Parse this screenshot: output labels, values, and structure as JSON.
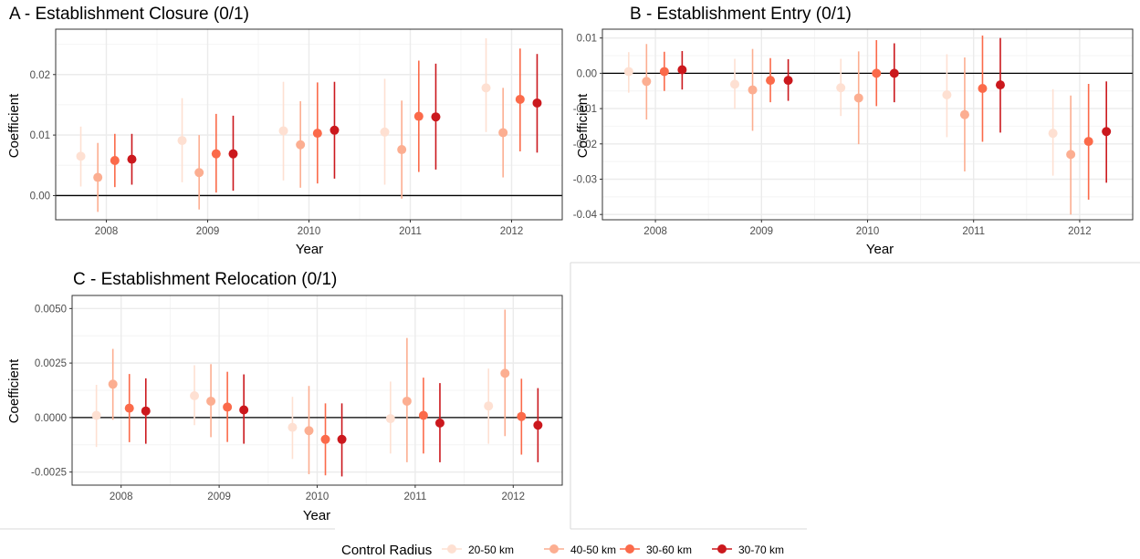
{
  "colors": {
    "series": [
      "#fee0d2",
      "#fcae91",
      "#fb6a4a",
      "#cb181d"
    ],
    "grid_major": "#ebebeb",
    "grid_minor": "#f4f4f4",
    "panel_border": "#333333",
    "zero_line": "#000000"
  },
  "legend": {
    "title": "Control Radius",
    "items": [
      "20-50 km",
      "40-50 km",
      "30-60 km",
      "30-70 km"
    ]
  },
  "chart_data": [
    {
      "type": "scatter",
      "title": "A - Establishment Closure (0/1)",
      "xlabel": "Year",
      "ylabel": "Coefficient",
      "categories": [
        "2008",
        "2009",
        "2010",
        "2011",
        "2012"
      ],
      "ylim": [
        -0.004,
        0.0275
      ],
      "yticks": [
        0.0,
        0.01,
        0.02
      ],
      "ytick_labels": [
        "0.00",
        "0.01",
        "0.02"
      ],
      "series": [
        {
          "name": "20-50 km",
          "values": [
            0.0065,
            0.0091,
            0.0107,
            0.0105,
            0.0178
          ],
          "lower": [
            0.0015,
            0.0022,
            0.0025,
            0.0018,
            0.0105
          ],
          "upper": [
            0.0114,
            0.0161,
            0.0188,
            0.0193,
            0.026
          ]
        },
        {
          "name": "40-50 km",
          "values": [
            0.003,
            0.0038,
            0.0084,
            0.0076,
            0.0104
          ],
          "lower": [
            -0.0027,
            -0.0023,
            0.0013,
            -0.0005,
            0.003
          ],
          "upper": [
            0.0087,
            0.01,
            0.0156,
            0.0157,
            0.0178
          ]
        },
        {
          "name": "30-60 km",
          "values": [
            0.0058,
            0.0069,
            0.0103,
            0.0131,
            0.0159
          ],
          "lower": [
            0.0014,
            0.0005,
            0.002,
            0.0039,
            0.0073
          ],
          "upper": [
            0.0102,
            0.0135,
            0.0187,
            0.0223,
            0.0243
          ]
        },
        {
          "name": "30-70 km",
          "values": [
            0.006,
            0.0069,
            0.0108,
            0.013,
            0.0153
          ],
          "lower": [
            0.0018,
            0.0008,
            0.0028,
            0.0043,
            0.0071
          ],
          "upper": [
            0.0102,
            0.0132,
            0.0188,
            0.0218,
            0.0234
          ]
        }
      ]
    },
    {
      "type": "scatter",
      "title": "B - Establishment Entry (0/1)",
      "xlabel": "Year",
      "ylabel": "Coefficient",
      "categories": [
        "2008",
        "2009",
        "2010",
        "2011",
        "2012"
      ],
      "ylim": [
        -0.0415,
        0.0125
      ],
      "yticks": [
        -0.04,
        -0.03,
        -0.02,
        -0.01,
        0.0,
        0.01
      ],
      "ytick_labels": [
        "-0.04",
        "-0.03",
        "-0.02",
        "-0.01",
        "0.00",
        "0.01"
      ],
      "series": [
        {
          "name": "20-50 km",
          "values": [
            0.0005,
            -0.0031,
            -0.0041,
            -0.0061,
            -0.017
          ],
          "lower": [
            -0.0055,
            -0.0101,
            -0.0121,
            -0.0181,
            -0.029
          ],
          "upper": [
            0.006,
            0.0041,
            0.0041,
            0.0054,
            -0.0045
          ]
        },
        {
          "name": "40-50 km",
          "values": [
            -0.0023,
            -0.0047,
            -0.007,
            -0.0117,
            -0.023
          ],
          "lower": [
            -0.0131,
            -0.0163,
            -0.0201,
            -0.0278,
            -0.04
          ],
          "upper": [
            0.0083,
            0.0069,
            0.0062,
            0.0045,
            -0.0063
          ]
        },
        {
          "name": "30-60 km",
          "values": [
            0.0005,
            -0.002,
            0.0,
            -0.0043,
            -0.0193
          ],
          "lower": [
            -0.005,
            -0.0082,
            -0.0093,
            -0.0194,
            -0.0358
          ],
          "upper": [
            0.0061,
            0.0043,
            0.0094,
            0.0107,
            -0.003
          ]
        },
        {
          "name": "30-70 km",
          "values": [
            0.001,
            -0.002,
            0.0,
            -0.0033,
            -0.0165
          ],
          "lower": [
            -0.0046,
            -0.0078,
            -0.0082,
            -0.0168,
            -0.031
          ],
          "upper": [
            0.0063,
            0.004,
            0.0085,
            0.01,
            -0.0023
          ]
        }
      ]
    },
    {
      "type": "scatter",
      "title": "C - Establishment Relocation (0/1)",
      "xlabel": "Year",
      "ylabel": "Coefficient",
      "categories": [
        "2008",
        "2009",
        "2010",
        "2011",
        "2012"
      ],
      "ylim": [
        -0.0031,
        0.0056
      ],
      "yticks": [
        -0.0025,
        0.0,
        0.0025,
        0.005
      ],
      "ytick_labels": [
        "-0.0025",
        "0.0000",
        "0.0025",
        "0.0050"
      ],
      "series": [
        {
          "name": "20-50 km",
          "values": [
            0.0001,
            0.001,
            -0.00045,
            -5e-05,
            0.00053
          ],
          "lower": [
            -0.00135,
            -0.00035,
            -0.0019,
            -0.00165,
            -0.0012
          ],
          "upper": [
            0.0015,
            0.0024,
            0.00095,
            0.00165,
            0.00225
          ]
        },
        {
          "name": "40-50 km",
          "values": [
            0.00153,
            0.00075,
            -0.0006,
            0.00075,
            0.00203
          ],
          "lower": [
            -0.0001,
            -0.0009,
            -0.0026,
            -0.00205,
            -0.00085
          ],
          "upper": [
            0.00315,
            0.00245,
            0.00145,
            0.00365,
            0.00495
          ]
        },
        {
          "name": "30-60 km",
          "values": [
            0.00043,
            0.00048,
            -0.001,
            0.0001,
            5e-05
          ],
          "lower": [
            -0.00113,
            -0.00112,
            -0.00265,
            -0.00165,
            -0.0017
          ],
          "upper": [
            0.002,
            0.0021,
            0.00065,
            0.00183,
            0.00178
          ]
        },
        {
          "name": "30-70 km",
          "values": [
            0.0003,
            0.00035,
            -0.001,
            -0.00025,
            -0.00035
          ],
          "lower": [
            -0.0012,
            -0.0012,
            -0.0027,
            -0.00205,
            -0.00205
          ],
          "upper": [
            0.0018,
            0.00198,
            0.00065,
            0.00158,
            0.00135
          ]
        }
      ]
    }
  ]
}
